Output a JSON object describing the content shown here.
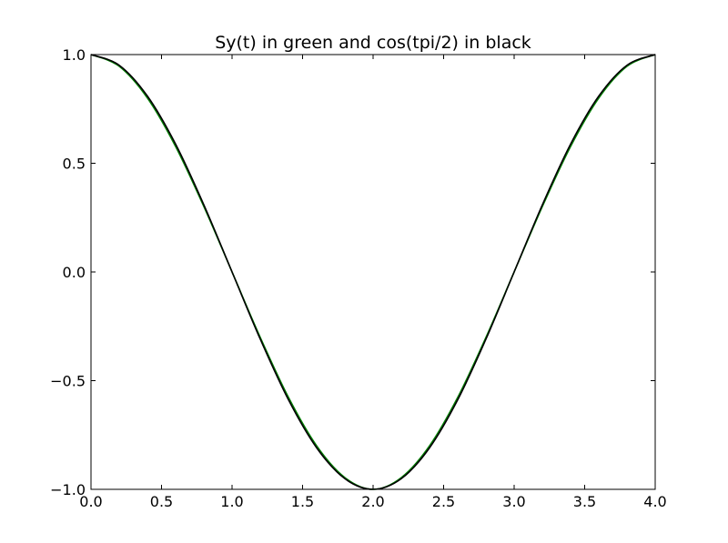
{
  "chart_data": {
    "type": "line",
    "title": "Sy(t) in green and cos(tpi/2) in black",
    "xlabel": "",
    "ylabel": "",
    "xlim": [
      0.0,
      4.0
    ],
    "ylim": [
      -1.0,
      1.0
    ],
    "xticks": [
      0.0,
      0.5,
      1.0,
      1.5,
      2.0,
      2.5,
      3.0,
      3.5,
      4.0
    ],
    "xtick_labels": [
      "0.0",
      "0.5",
      "1.0",
      "1.5",
      "2.0",
      "2.5",
      "3.0",
      "3.5",
      "4.0"
    ],
    "yticks": [
      -1.0,
      -0.5,
      0.0,
      0.5,
      1.0
    ],
    "ytick_labels": [
      "−1.0",
      "−0.5",
      "0.0",
      "0.5",
      "1.0"
    ],
    "grid": false,
    "legend": "none",
    "series": [
      {
        "color": "#008000",
        "x": [
          0.0,
          0.2,
          0.4,
          0.6,
          0.8,
          1.0,
          1.2,
          1.4,
          1.6,
          1.8,
          2.0,
          2.2,
          2.4,
          2.6,
          2.8,
          3.0,
          3.2,
          3.4,
          3.6,
          3.8,
          4.0
        ],
        "y": [
          1.0,
          0.946,
          0.8,
          0.577,
          0.301,
          0.0,
          -0.301,
          -0.577,
          -0.8,
          -0.946,
          -1.0,
          -0.946,
          -0.8,
          -0.577,
          -0.301,
          0.0,
          0.301,
          0.577,
          0.8,
          0.946,
          1.0
        ]
      },
      {
        "color": "#000000",
        "x": [
          0.0,
          0.2,
          0.4,
          0.6,
          0.8,
          1.0,
          1.2,
          1.4,
          1.6,
          1.8,
          2.0,
          2.2,
          2.4,
          2.6,
          2.8,
          3.0,
          3.2,
          3.4,
          3.6,
          3.8,
          4.0
        ],
        "y": [
          1.0,
          0.951,
          0.809,
          0.588,
          0.309,
          0.0,
          -0.309,
          -0.588,
          -0.809,
          -0.951,
          -1.0,
          -0.951,
          -0.809,
          -0.588,
          -0.309,
          0.0,
          0.309,
          0.588,
          0.809,
          0.951,
          1.0
        ]
      }
    ]
  }
}
